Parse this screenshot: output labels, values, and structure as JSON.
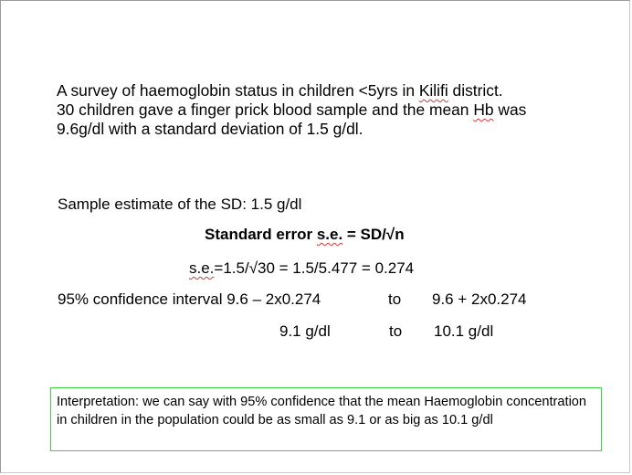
{
  "intro": {
    "line1_a": "A survey of haemoglobin status in children <5yrs in ",
    "line1_b": "Kilifi",
    "line1_c": " district.",
    "line2_a": "30 children gave a finger prick blood sample and the mean ",
    "line2_b": "Hb",
    "line2_c": " was",
    "line3": "9.6g/dl with a standard deviation of 1.5 g/dl."
  },
  "sd_estimate": "Sample estimate of the SD:  1.5 g/dl",
  "se_formula": {
    "prefix": "Standard error ",
    "abbr": "s.e.",
    "suffix": " = SD/√n"
  },
  "se_calc": {
    "abbr": "s.e.",
    "rest": "=1.5/√30 = 1.5/5.477 = 0.274"
  },
  "ci": {
    "label": "95% confidence interval 9.6 – 2x0.274",
    "to1": "to",
    "upper_expr": "9.6 + 2x0.274",
    "lower_value": "9.1 g/dl",
    "to2": "to",
    "upper_value": "10.1 g/dl"
  },
  "interpretation": "Interpretation: we can say with 95% confidence that the mean Haemoglobin concentration in children in the population could be as small as 9.1 or as big as 10.1 g/dl",
  "colors": {
    "box_border": "#3fd23f",
    "spellcheck_underline": "#d43a3a"
  }
}
